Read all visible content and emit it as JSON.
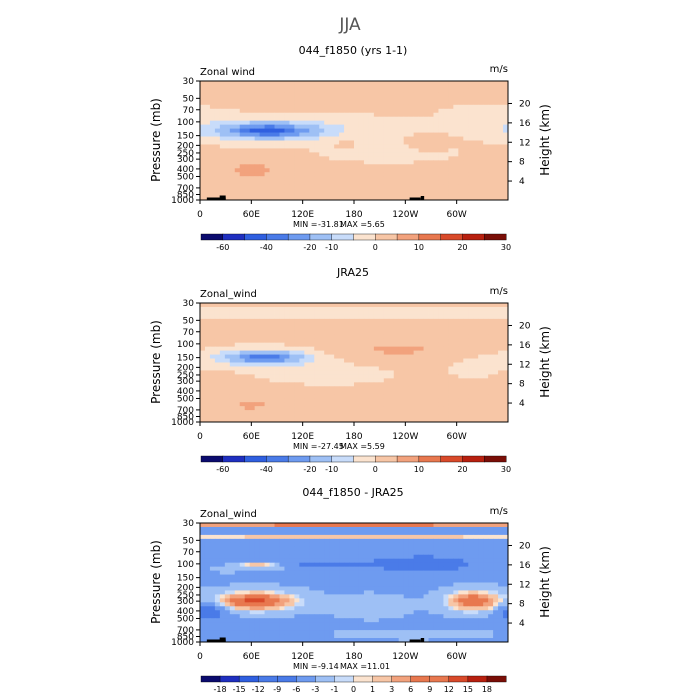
{
  "figure": {
    "title": "JJA",
    "colors": {
      "div": [
        "#0b0b6e",
        "#1f2fc0",
        "#2f5fe0",
        "#4a7be8",
        "#6e9bf0",
        "#9ec0f5",
        "#c8dcfa",
        "#fbe3cf",
        "#f7c6a6",
        "#f2a27d",
        "#e8784f",
        "#d94a2a",
        "#b8200f",
        "#7a0e07"
      ],
      "land": "#000000"
    }
  },
  "chart_data": [
    {
      "type": "heatmap",
      "title": "044_f1850 (yrs 1-1)",
      "left_label": "Zonal wind",
      "units": "m/s",
      "ylabel": "Pressure (mb)",
      "ylabel_right": "Height (km)",
      "x_ticks": [
        "0",
        "60E",
        "120E",
        "180",
        "120W",
        "60W"
      ],
      "x_tick_positions": [
        0,
        60,
        120,
        180,
        240,
        300
      ],
      "xlim": [
        0,
        360
      ],
      "y_ticks": [
        30,
        50,
        70,
        100,
        150,
        200,
        250,
        300,
        400,
        500,
        700,
        850,
        1000
      ],
      "ylim": [
        1000,
        30
      ],
      "height_ticks": [
        20,
        16,
        12,
        8,
        4
      ],
      "stats": {
        "min": "-31.81",
        "max": "5.65"
      },
      "min_label": "MIN =",
      "max_label": "MAX =",
      "colorbar_labels": [
        "-60",
        "-40",
        "-20",
        "-10",
        "0",
        "10",
        "20",
        "30"
      ],
      "colorbar_levels": [
        -70,
        -60,
        -50,
        -40,
        -30,
        -20,
        -10,
        -5,
        0,
        5,
        10,
        15,
        20,
        25,
        30
      ],
      "background": 1,
      "features": [
        {
          "lon": 80,
          "p": 130,
          "rx": 38,
          "ry": 0.14,
          "v": -32
        },
        {
          "lon": 80,
          "p": 130,
          "rx": 70,
          "ry": 0.28,
          "v": -15
        },
        {
          "lon": 100,
          "p": 120,
          "rx": 150,
          "ry": 0.4,
          "v": -4
        },
        {
          "lon": 220,
          "p": 250,
          "rx": 70,
          "ry": 0.25,
          "v": -4
        },
        {
          "lon": 330,
          "p": 80,
          "rx": 45,
          "ry": 0.3,
          "v": -3
        },
        {
          "lon": 60,
          "p": 420,
          "rx": 45,
          "ry": 0.35,
          "v": 5
        },
        {
          "lon": 265,
          "p": 200,
          "rx": 18,
          "ry": 0.2,
          "v": 5
        },
        {
          "lon": 170,
          "p": 200,
          "rx": 12,
          "ry": 0.12,
          "v": 4
        },
        {
          "lon": 200,
          "p": 900,
          "rx": 160,
          "ry": 0.25,
          "v": 2
        }
      ]
    },
    {
      "type": "heatmap",
      "title": "JRA25",
      "left_label": "Zonal_wind",
      "units": "m/s",
      "ylabel": "Pressure (mb)",
      "ylabel_right": "Height (km)",
      "x_ticks": [
        "0",
        "60E",
        "120E",
        "180",
        "120W",
        "60W"
      ],
      "x_tick_positions": [
        0,
        60,
        120,
        180,
        240,
        300
      ],
      "xlim": [
        0,
        360
      ],
      "y_ticks": [
        30,
        50,
        70,
        100,
        150,
        200,
        250,
        300,
        400,
        500,
        700,
        850,
        1000
      ],
      "ylim": [
        1000,
        30
      ],
      "height_ticks": [
        20,
        16,
        12,
        8,
        4
      ],
      "stats": {
        "min": "-27.45",
        "max": "5.59"
      },
      "min_label": "MIN =",
      "max_label": "MAX =",
      "colorbar_labels": [
        "-60",
        "-40",
        "-20",
        "-10",
        "0",
        "10",
        "20",
        "30"
      ],
      "colorbar_levels": [
        -70,
        -60,
        -50,
        -40,
        -30,
        -20,
        -10,
        -5,
        0,
        5,
        10,
        15,
        20,
        25,
        30
      ],
      "background": 1.5,
      "features": [
        {
          "lon": 75,
          "p": 150,
          "rx": 32,
          "ry": 0.13,
          "v": -28
        },
        {
          "lon": 75,
          "p": 150,
          "rx": 65,
          "ry": 0.28,
          "v": -14
        },
        {
          "lon": 60,
          "p": 40,
          "rx": 350,
          "ry": 0.14,
          "v": -5
        },
        {
          "lon": 150,
          "p": 250,
          "rx": 80,
          "ry": 0.3,
          "v": -4
        },
        {
          "lon": 320,
          "p": 200,
          "rx": 35,
          "ry": 0.4,
          "v": -3
        },
        {
          "lon": 230,
          "p": 120,
          "rx": 90,
          "ry": 0.3,
          "v": 4
        },
        {
          "lon": 60,
          "p": 600,
          "rx": 40,
          "ry": 0.3,
          "v": 4
        }
      ]
    },
    {
      "type": "heatmap",
      "title": "044_f1850 - JRA25",
      "left_label": "Zonal_wind",
      "units": "m/s",
      "ylabel": "Pressure (mb)",
      "ylabel_right": "Height (km)",
      "x_ticks": [
        "0",
        "60E",
        "120E",
        "180",
        "120W",
        "60W"
      ],
      "x_tick_positions": [
        0,
        60,
        120,
        180,
        240,
        300
      ],
      "xlim": [
        0,
        360
      ],
      "y_ticks": [
        30,
        50,
        70,
        100,
        150,
        200,
        250,
        300,
        400,
        500,
        700,
        850,
        1000
      ],
      "ylim": [
        1000,
        30
      ],
      "height_ticks": [
        20,
        16,
        12,
        8,
        4
      ],
      "stats": {
        "min": "-9.14",
        "max": "11.01"
      },
      "min_label": "MIN =",
      "max_label": "MAX =",
      "colorbar_labels": [
        "-18",
        "-15",
        "-12",
        "-9",
        "-6",
        "-3",
        "-1",
        "0",
        "1",
        "3",
        "6",
        "9",
        "12",
        "15",
        "18"
      ],
      "colorbar_levels": [
        -21,
        -18,
        -15,
        -12,
        -9,
        -6,
        -3,
        -1,
        0,
        1,
        3,
        6,
        9,
        12,
        15,
        18,
        21
      ],
      "background": -3.5,
      "features": [
        {
          "lon": 180,
          "p": 31,
          "rx": 400,
          "ry": 0.06,
          "v": 12
        },
        {
          "lon": 180,
          "p": 45,
          "rx": 400,
          "ry": 0.06,
          "v": 5
        },
        {
          "lon": 65,
          "p": 300,
          "rx": 32,
          "ry": 0.18,
          "v": 11
        },
        {
          "lon": 65,
          "p": 300,
          "rx": 55,
          "ry": 0.33,
          "v": 6
        },
        {
          "lon": 70,
          "p": 105,
          "rx": 25,
          "ry": 0.09,
          "v": 6
        },
        {
          "lon": 320,
          "p": 300,
          "rx": 22,
          "ry": 0.2,
          "v": 9
        },
        {
          "lon": 320,
          "p": 300,
          "rx": 38,
          "ry": 0.35,
          "v": 5
        },
        {
          "lon": 200,
          "p": 350,
          "rx": 45,
          "ry": 0.35,
          "v": 2
        },
        {
          "lon": 260,
          "p": 100,
          "rx": 50,
          "ry": 0.2,
          "v": -8
        },
        {
          "lon": 150,
          "p": 100,
          "rx": 50,
          "ry": 0.1,
          "v": -5
        },
        {
          "lon": 30,
          "p": 120,
          "rx": 25,
          "ry": 0.1,
          "v": 1
        },
        {
          "lon": 10,
          "p": 400,
          "rx": 22,
          "ry": 0.3,
          "v": -6
        },
        {
          "lon": 250,
          "p": 800,
          "rx": 120,
          "ry": 0.2,
          "v": 1
        }
      ]
    }
  ]
}
